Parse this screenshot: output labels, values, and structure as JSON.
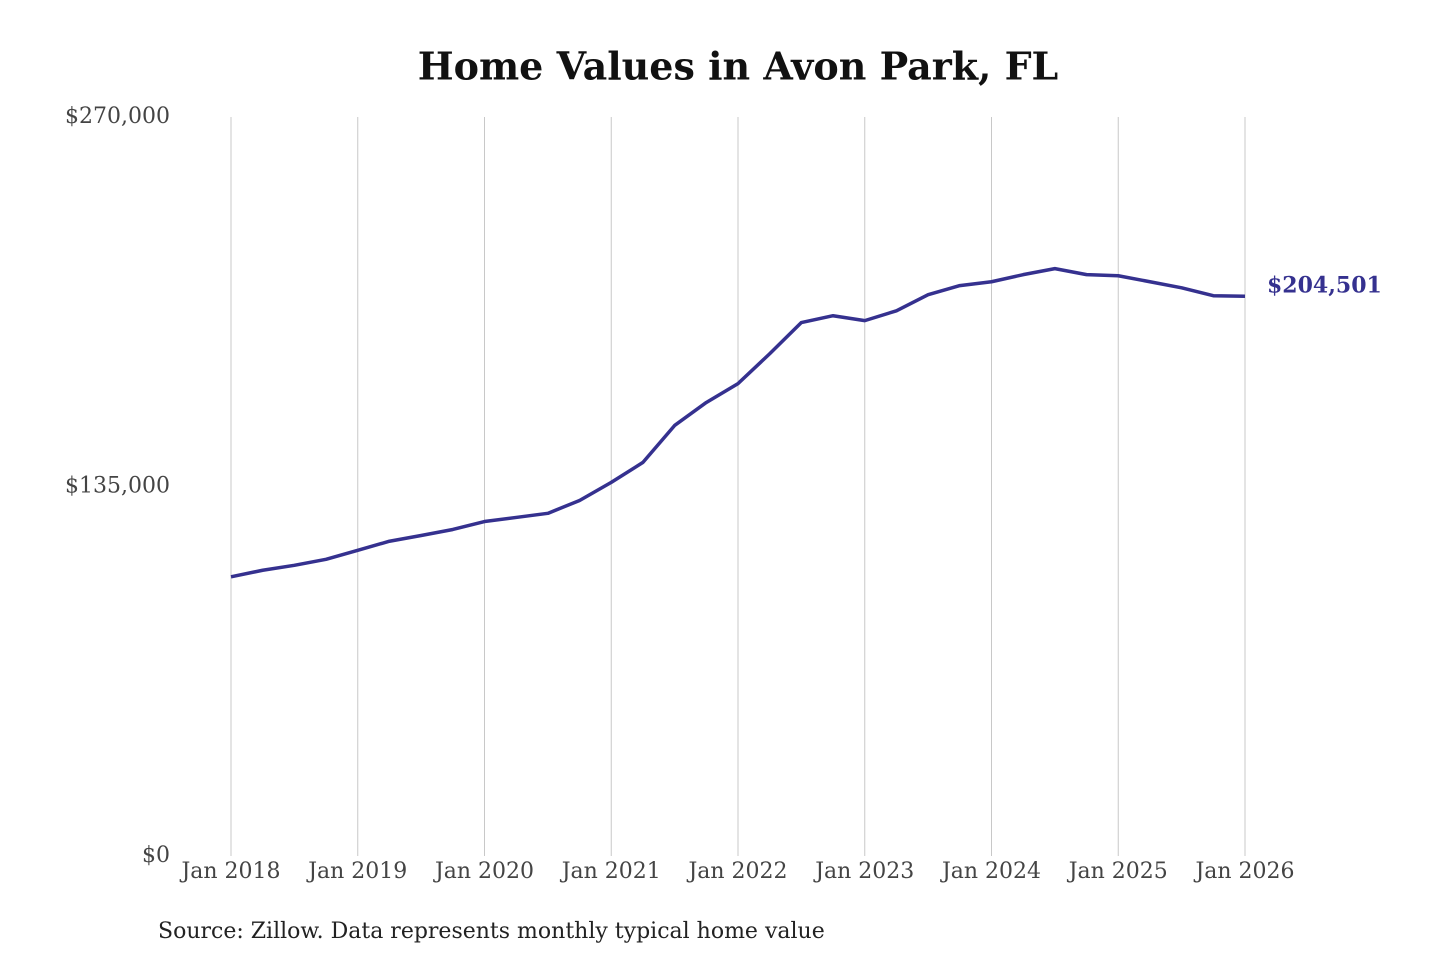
{
  "chart_data": {
    "type": "line",
    "title": "Home Values in Avon Park, FL",
    "note": "Source: Zillow. Data represents monthly typical home value",
    "x": [
      "2018-01",
      "2018-04",
      "2018-07",
      "2018-10",
      "2019-01",
      "2019-04",
      "2019-07",
      "2019-10",
      "2020-01",
      "2020-04",
      "2020-07",
      "2020-10",
      "2021-01",
      "2021-04",
      "2021-07",
      "2021-10",
      "2022-01",
      "2022-04",
      "2022-07",
      "2022-10",
      "2023-01",
      "2023-04",
      "2023-07",
      "2023-10",
      "2024-01",
      "2024-04",
      "2024-07",
      "2024-10",
      "2025-01",
      "2025-04",
      "2025-07",
      "2025-10",
      "2026-01"
    ],
    "series": [
      {
        "color": "#35318f",
        "values": [
          102000,
          104400,
          106200,
          108400,
          111700,
          115000,
          117100,
          119300,
          122200,
          123700,
          125200,
          129900,
          136500,
          143800,
          157300,
          165700,
          172600,
          183500,
          194900,
          197400,
          195600,
          199200,
          205100,
          208400,
          209800,
          212400,
          214600,
          212400,
          212000,
          209800,
          207600,
          204700,
          204501
        ],
        "value_labels": [
          null,
          null,
          null,
          null,
          null,
          null,
          null,
          null,
          null,
          null,
          null,
          null,
          null,
          null,
          null,
          null,
          null,
          null,
          null,
          null,
          null,
          null,
          null,
          null,
          null,
          null,
          null,
          null,
          null,
          null,
          null,
          null,
          "$204,501"
        ]
      }
    ],
    "xlim": [
      "2018-01",
      "2026-01"
    ],
    "xticks": [
      {
        "value": "2018-01",
        "label": "Jan 2018"
      },
      {
        "value": "2019-01",
        "label": "Jan 2019"
      },
      {
        "value": "2020-01",
        "label": "Jan 2020"
      },
      {
        "value": "2021-01",
        "label": "Jan 2021"
      },
      {
        "value": "2022-01",
        "label": "Jan 2022"
      },
      {
        "value": "2023-01",
        "label": "Jan 2023"
      },
      {
        "value": "2024-01",
        "label": "Jan 2024"
      },
      {
        "value": "2025-01",
        "label": "Jan 2025"
      },
      {
        "value": "2026-01",
        "label": "Jan 2026"
      }
    ],
    "ylim": [
      0,
      270000
    ],
    "yticks": [
      {
        "value": 0,
        "label": "$0"
      },
      {
        "value": 135000,
        "label": "$135,000"
      },
      {
        "value": 270000,
        "label": "$270,000"
      }
    ],
    "grid": "x"
  }
}
